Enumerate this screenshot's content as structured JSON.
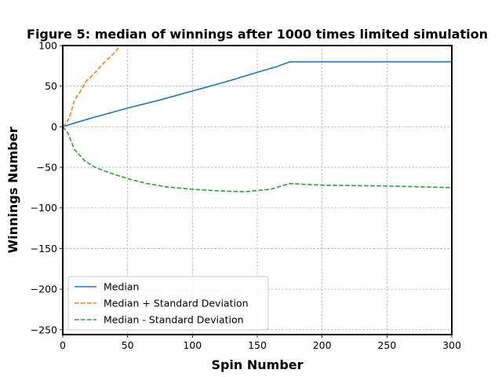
{
  "chart_data": {
    "type": "line",
    "title": "Figure 5: median of winnings after 1000 times limited simulation",
    "xlabel": "Spin Number",
    "ylabel": "Winnings Number",
    "xlim": [
      0,
      300
    ],
    "ylim": [
      -256,
      100
    ],
    "x_ticks": [
      0,
      50,
      100,
      150,
      200,
      250,
      300
    ],
    "y_ticks": [
      -250,
      -200,
      -150,
      -100,
      -50,
      0,
      50,
      100
    ],
    "x_tick_labels": [
      "0",
      "50",
      "100",
      "150",
      "200",
      "250",
      "300"
    ],
    "y_tick_labels": [
      "−250",
      "−200",
      "−150",
      "−100",
      "−50",
      "0",
      "50",
      "100"
    ],
    "grid": true,
    "legend_position": "lower-left",
    "series": [
      {
        "name": "Median",
        "color": "#1f77b4",
        "style": "solid",
        "points": [
          [
            0,
            0
          ],
          [
            10,
            5
          ],
          [
            25,
            12
          ],
          [
            50,
            23
          ],
          [
            75,
            33
          ],
          [
            100,
            44
          ],
          [
            125,
            55
          ],
          [
            150,
            67
          ],
          [
            165,
            74
          ],
          [
            175,
            80
          ],
          [
            200,
            80
          ],
          [
            250,
            80
          ],
          [
            300,
            80
          ]
        ]
      },
      {
        "name": "Median + Standard Deviation",
        "color": "#ff7f0e",
        "style": "dashed",
        "points": [
          [
            0,
            0
          ],
          [
            3,
            5
          ],
          [
            6,
            15
          ],
          [
            9,
            33
          ],
          [
            13,
            42
          ],
          [
            18,
            56
          ],
          [
            24,
            65
          ],
          [
            30,
            76
          ],
          [
            36,
            85
          ],
          [
            41,
            93
          ],
          [
            44,
            100
          ]
        ]
      },
      {
        "name": "Median - Standard Deviation",
        "color": "#2ca02c",
        "style": "dashed",
        "points": [
          [
            0,
            0
          ],
          [
            4,
            -8
          ],
          [
            9,
            -28
          ],
          [
            17,
            -42
          ],
          [
            25,
            -50
          ],
          [
            35,
            -56
          ],
          [
            50,
            -64
          ],
          [
            65,
            -70
          ],
          [
            80,
            -74
          ],
          [
            100,
            -77
          ],
          [
            120,
            -79
          ],
          [
            140,
            -80
          ],
          [
            160,
            -77
          ],
          [
            175,
            -70
          ],
          [
            200,
            -72
          ],
          [
            250,
            -73
          ],
          [
            300,
            -75
          ]
        ]
      }
    ]
  }
}
